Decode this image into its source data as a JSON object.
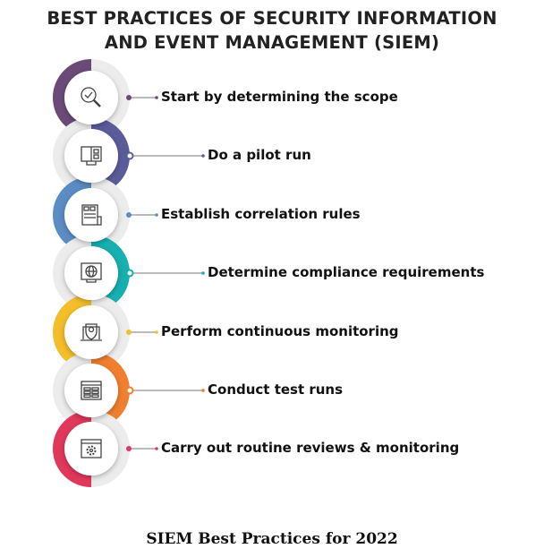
{
  "title": {
    "line1": "BEST PRACTICES OF SECURITY INFORMATION",
    "line2": "AND EVENT MANAGEMENT (SIEM)"
  },
  "steps": [
    {
      "label": "Start by determining the scope",
      "color": "#6b4a78",
      "icon": "magnifier-check-icon",
      "side": "left"
    },
    {
      "label": "Do a pilot run",
      "color": "#5a5c9a",
      "icon": "monitor-dashboard-icon",
      "side": "right"
    },
    {
      "label": "Establish correlation rules",
      "color": "#5b8cc4",
      "icon": "document-list-icon",
      "side": "left"
    },
    {
      "label": "Determine compliance requirements",
      "color": "#17afb0",
      "icon": "globe-monitor-icon",
      "side": "right"
    },
    {
      "label": "Perform continuous monitoring",
      "color": "#f4bd2a",
      "icon": "shield-laptop-icon",
      "side": "left"
    },
    {
      "label": "Conduct test runs",
      "color": "#f07f2f",
      "icon": "table-window-icon",
      "side": "right"
    },
    {
      "label": "Carry out routine reviews & monitoring",
      "color": "#e0385a",
      "icon": "gear-window-icon",
      "side": "left"
    }
  ],
  "caption": "SIEM Best Practices for 2022"
}
